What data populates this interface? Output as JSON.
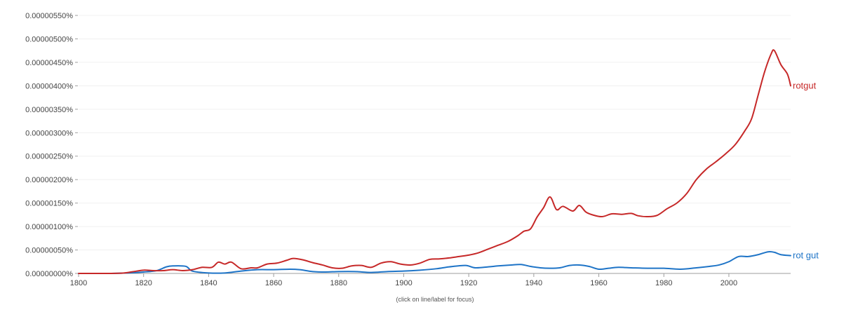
{
  "chart_data": {
    "type": "line",
    "title": "",
    "xlabel": "",
    "ylabel": "",
    "xlim": [
      1800,
      2019
    ],
    "ylim": [
      0,
      5.5e-06
    ],
    "y_unit": "%",
    "grid": true,
    "x_ticks": [
      1800,
      1820,
      1840,
      1860,
      1880,
      1900,
      1920,
      1940,
      1960,
      1980,
      2000
    ],
    "y_ticks": [
      {
        "value": 0.0,
        "label": "0.00000000%"
      },
      {
        "value": 5e-07,
        "label": "0.00000050%"
      },
      {
        "value": 1e-06,
        "label": "0.00000100%"
      },
      {
        "value": 1.5e-06,
        "label": "0.00000150%"
      },
      {
        "value": 2e-06,
        "label": "0.00000200%"
      },
      {
        "value": 2.5e-06,
        "label": "0.00000250%"
      },
      {
        "value": 3e-06,
        "label": "0.00000300%"
      },
      {
        "value": 3.5e-06,
        "label": "0.00000350%"
      },
      {
        "value": 4e-06,
        "label": "0.00000400%"
      },
      {
        "value": 4.5e-06,
        "label": "0.00000450%"
      },
      {
        "value": 5e-06,
        "label": "0.00000500%"
      },
      {
        "value": 5.5e-06,
        "label": "0.00000550%"
      }
    ],
    "legend_placement": "end-of-line",
    "hint": "(click on line/label for focus)",
    "series": [
      {
        "name": "rotgut",
        "color": "#c62828",
        "points": [
          [
            1800,
            0.0
          ],
          [
            1805,
            0.0
          ],
          [
            1810,
            0.0
          ],
          [
            1814,
            1e-08
          ],
          [
            1817,
            4e-08
          ],
          [
            1820,
            7e-08
          ],
          [
            1823,
            6e-08
          ],
          [
            1826,
            6e-08
          ],
          [
            1829,
            8e-08
          ],
          [
            1832,
            6e-08
          ],
          [
            1835,
            8e-08
          ],
          [
            1838,
            1.3e-07
          ],
          [
            1841,
            1.3e-07
          ],
          [
            1843,
            2.4e-07
          ],
          [
            1845,
            2e-07
          ],
          [
            1847,
            2.4e-07
          ],
          [
            1850,
            1e-07
          ],
          [
            1853,
            1.2e-07
          ],
          [
            1855,
            1.2e-07
          ],
          [
            1858,
            2e-07
          ],
          [
            1861,
            2.2e-07
          ],
          [
            1864,
            2.8e-07
          ],
          [
            1866,
            3.2e-07
          ],
          [
            1869,
            2.9e-07
          ],
          [
            1872,
            2.3e-07
          ],
          [
            1875,
            1.8e-07
          ],
          [
            1878,
            1.2e-07
          ],
          [
            1881,
            1.1e-07
          ],
          [
            1884,
            1.6e-07
          ],
          [
            1887,
            1.7e-07
          ],
          [
            1890,
            1.3e-07
          ],
          [
            1893,
            2.2e-07
          ],
          [
            1896,
            2.5e-07
          ],
          [
            1899,
            2e-07
          ],
          [
            1902,
            1.8e-07
          ],
          [
            1905,
            2.2e-07
          ],
          [
            1908,
            3e-07
          ],
          [
            1911,
            3.1e-07
          ],
          [
            1914,
            3.3e-07
          ],
          [
            1917,
            3.6e-07
          ],
          [
            1920,
            3.9e-07
          ],
          [
            1923,
            4.4e-07
          ],
          [
            1926,
            5.2e-07
          ],
          [
            1929,
            6e-07
          ],
          [
            1932,
            6.8e-07
          ],
          [
            1935,
            8e-07
          ],
          [
            1937,
            9e-07
          ],
          [
            1939,
            9.5e-07
          ],
          [
            1941,
            1.2e-06
          ],
          [
            1943,
            1.4e-06
          ],
          [
            1945,
            1.63e-06
          ],
          [
            1947,
            1.36e-06
          ],
          [
            1949,
            1.43e-06
          ],
          [
            1952,
            1.33e-06
          ],
          [
            1954,
            1.45e-06
          ],
          [
            1956,
            1.31e-06
          ],
          [
            1958,
            1.25e-06
          ],
          [
            1961,
            1.21e-06
          ],
          [
            1964,
            1.27e-06
          ],
          [
            1967,
            1.26e-06
          ],
          [
            1970,
            1.28e-06
          ],
          [
            1972,
            1.23e-06
          ],
          [
            1975,
            1.21e-06
          ],
          [
            1978,
            1.24e-06
          ],
          [
            1981,
            1.38e-06
          ],
          [
            1984,
            1.5e-06
          ],
          [
            1987,
            1.7e-06
          ],
          [
            1990,
            2e-06
          ],
          [
            1993,
            2.22e-06
          ],
          [
            1996,
            2.38e-06
          ],
          [
            1999,
            2.55e-06
          ],
          [
            2002,
            2.75e-06
          ],
          [
            2005,
            3.05e-06
          ],
          [
            2007,
            3.3e-06
          ],
          [
            2009,
            3.8e-06
          ],
          [
            2011,
            4.3e-06
          ],
          [
            2013,
            4.68e-06
          ],
          [
            2014,
            4.75e-06
          ],
          [
            2016,
            4.45e-06
          ],
          [
            2018,
            4.25e-06
          ],
          [
            2019,
            4e-06
          ]
        ]
      },
      {
        "name": "rot gut",
        "color": "#1e74c7",
        "points": [
          [
            1800,
            0.0
          ],
          [
            1810,
            0.0
          ],
          [
            1815,
            1e-08
          ],
          [
            1820,
            3e-08
          ],
          [
            1824,
            6e-08
          ],
          [
            1827,
            1.4e-07
          ],
          [
            1829,
            1.6e-07
          ],
          [
            1833,
            1.5e-07
          ],
          [
            1835,
            5e-08
          ],
          [
            1840,
            1e-08
          ],
          [
            1845,
            1e-08
          ],
          [
            1850,
            5e-08
          ],
          [
            1855,
            8e-08
          ],
          [
            1860,
            8e-08
          ],
          [
            1865,
            9e-08
          ],
          [
            1868,
            8e-08
          ],
          [
            1872,
            4e-08
          ],
          [
            1876,
            3e-08
          ],
          [
            1880,
            4e-08
          ],
          [
            1885,
            4e-08
          ],
          [
            1890,
            2e-08
          ],
          [
            1895,
            4e-08
          ],
          [
            1900,
            5e-08
          ],
          [
            1905,
            7e-08
          ],
          [
            1910,
            1e-07
          ],
          [
            1914,
            1.4e-07
          ],
          [
            1919,
            1.7e-07
          ],
          [
            1922,
            1.2e-07
          ],
          [
            1926,
            1.4e-07
          ],
          [
            1929,
            1.6e-07
          ],
          [
            1933,
            1.8e-07
          ],
          [
            1936,
            1.9e-07
          ],
          [
            1939,
            1.5e-07
          ],
          [
            1942,
            1.2e-07
          ],
          [
            1945,
            1.1e-07
          ],
          [
            1948,
            1.2e-07
          ],
          [
            1951,
            1.7e-07
          ],
          [
            1954,
            1.8e-07
          ],
          [
            1957,
            1.5e-07
          ],
          [
            1960,
            9e-08
          ],
          [
            1963,
            1.1e-07
          ],
          [
            1966,
            1.3e-07
          ],
          [
            1970,
            1.2e-07
          ],
          [
            1975,
            1.1e-07
          ],
          [
            1980,
            1.1e-07
          ],
          [
            1985,
            9e-08
          ],
          [
            1990,
            1.2e-07
          ],
          [
            1994,
            1.5e-07
          ],
          [
            1997,
            1.8e-07
          ],
          [
            2000,
            2.5e-07
          ],
          [
            2003,
            3.6e-07
          ],
          [
            2006,
            3.6e-07
          ],
          [
            2009,
            4e-07
          ],
          [
            2012,
            4.6e-07
          ],
          [
            2014,
            4.5e-07
          ],
          [
            2016,
            4e-07
          ],
          [
            2019,
            3.8e-07
          ]
        ]
      }
    ]
  }
}
